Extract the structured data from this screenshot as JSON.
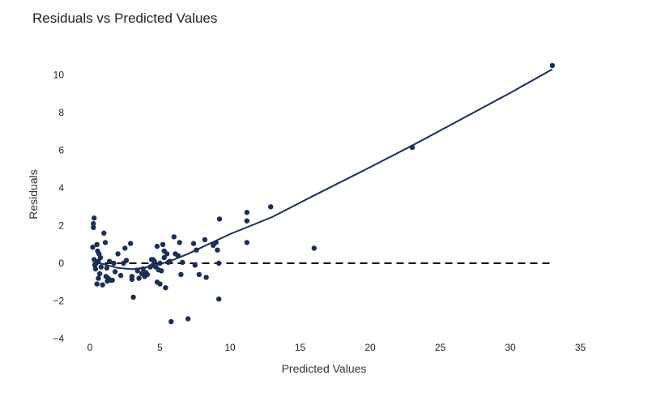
{
  "chart_data": {
    "type": "scatter",
    "title": "Residuals vs Predicted Values",
    "xlabel": "Predicted Values",
    "ylabel": "Residuals",
    "xlim": [
      -1,
      35
    ],
    "ylim": [
      -4,
      11
    ],
    "xticks": [
      0,
      5,
      10,
      15,
      20,
      25,
      30,
      35
    ],
    "yticks": [
      -4,
      -2,
      0,
      2,
      4,
      6,
      8,
      10
    ],
    "ytick_labels": [
      "−4",
      "−2",
      "0",
      "2",
      "4",
      "6",
      "8",
      "10"
    ],
    "grid": false,
    "point_color": "#1b2f56",
    "line_color": "#1b2f56",
    "zero_line": {
      "y": 0,
      "x_range": [
        0.2,
        33
      ],
      "style": "dashed",
      "color": "#000000"
    },
    "points": [
      {
        "x": 0.2,
        "y": 0.85
      },
      {
        "x": 0.25,
        "y": 1.9
      },
      {
        "x": 0.25,
        "y": 2.1
      },
      {
        "x": 0.3,
        "y": 2.4
      },
      {
        "x": 0.3,
        "y": 0.2
      },
      {
        "x": 0.35,
        "y": -0.1
      },
      {
        "x": 0.4,
        "y": -0.3
      },
      {
        "x": 0.45,
        "y": 0.0
      },
      {
        "x": 0.5,
        "y": 1.0
      },
      {
        "x": 0.5,
        "y": -1.1
      },
      {
        "x": 0.55,
        "y": 0.65
      },
      {
        "x": 0.6,
        "y": -0.8
      },
      {
        "x": 0.6,
        "y": 0.1
      },
      {
        "x": 0.65,
        "y": 0.5
      },
      {
        "x": 0.7,
        "y": -0.55
      },
      {
        "x": 0.75,
        "y": 0.3
      },
      {
        "x": 0.8,
        "y": -0.2
      },
      {
        "x": 0.9,
        "y": -1.15
      },
      {
        "x": 1.0,
        "y": 1.6
      },
      {
        "x": 1.1,
        "y": 1.1
      },
      {
        "x": 1.15,
        "y": -0.7
      },
      {
        "x": 1.2,
        "y": -0.25
      },
      {
        "x": 1.25,
        "y": -0.95
      },
      {
        "x": 1.3,
        "y": -0.8
      },
      {
        "x": 1.4,
        "y": 0.1
      },
      {
        "x": 1.5,
        "y": -0.9
      },
      {
        "x": 1.6,
        "y": -0.9
      },
      {
        "x": 1.7,
        "y": 0.0
      },
      {
        "x": 1.8,
        "y": -0.45
      },
      {
        "x": 2.0,
        "y": 0.5
      },
      {
        "x": 2.2,
        "y": -0.65
      },
      {
        "x": 2.4,
        "y": 0.0
      },
      {
        "x": 2.5,
        "y": 0.8
      },
      {
        "x": 2.6,
        "y": 0.15
      },
      {
        "x": 2.9,
        "y": 1.05
      },
      {
        "x": 3.0,
        "y": -0.7
      },
      {
        "x": 3.0,
        "y": -0.85
      },
      {
        "x": 3.1,
        "y": -1.8
      },
      {
        "x": 3.4,
        "y": -0.4
      },
      {
        "x": 3.5,
        "y": -0.8
      },
      {
        "x": 3.7,
        "y": -0.55
      },
      {
        "x": 3.8,
        "y": -0.3
      },
      {
        "x": 3.9,
        "y": -0.7
      },
      {
        "x": 4.0,
        "y": -0.5
      },
      {
        "x": 4.1,
        "y": -0.6
      },
      {
        "x": 4.3,
        "y": -0.2
      },
      {
        "x": 4.4,
        "y": 0.2
      },
      {
        "x": 4.5,
        "y": 0.2
      },
      {
        "x": 4.5,
        "y": -0.1
      },
      {
        "x": 4.6,
        "y": 0.1
      },
      {
        "x": 4.7,
        "y": -0.2
      },
      {
        "x": 4.8,
        "y": 0.9
      },
      {
        "x": 4.8,
        "y": -1.0
      },
      {
        "x": 4.9,
        "y": -0.35
      },
      {
        "x": 5.0,
        "y": -1.1
      },
      {
        "x": 5.0,
        "y": 0.0
      },
      {
        "x": 5.1,
        "y": -0.4
      },
      {
        "x": 5.2,
        "y": 1.0
      },
      {
        "x": 5.3,
        "y": 0.3
      },
      {
        "x": 5.3,
        "y": 0.65
      },
      {
        "x": 5.4,
        "y": -1.3
      },
      {
        "x": 5.5,
        "y": 0.5
      },
      {
        "x": 5.6,
        "y": 0.05
      },
      {
        "x": 5.7,
        "y": 0.1
      },
      {
        "x": 5.8,
        "y": -3.1
      },
      {
        "x": 6.0,
        "y": 1.4
      },
      {
        "x": 6.1,
        "y": 0.5
      },
      {
        "x": 6.3,
        "y": 0.4
      },
      {
        "x": 6.4,
        "y": 1.1
      },
      {
        "x": 6.5,
        "y": -0.6
      },
      {
        "x": 6.6,
        "y": 0.05
      },
      {
        "x": 7.0,
        "y": -2.95
      },
      {
        "x": 7.4,
        "y": 1.05
      },
      {
        "x": 7.5,
        "y": -0.1
      },
      {
        "x": 7.6,
        "y": 0.7
      },
      {
        "x": 7.8,
        "y": -0.6
      },
      {
        "x": 8.2,
        "y": 1.25
      },
      {
        "x": 8.3,
        "y": -0.75
      },
      {
        "x": 8.8,
        "y": 0.95
      },
      {
        "x": 9.0,
        "y": 1.1
      },
      {
        "x": 9.1,
        "y": 0.7
      },
      {
        "x": 9.2,
        "y": 0.0
      },
      {
        "x": 9.2,
        "y": -1.9
      },
      {
        "x": 9.25,
        "y": 2.35
      },
      {
        "x": 11.2,
        "y": 2.25
      },
      {
        "x": 11.2,
        "y": 2.7
      },
      {
        "x": 11.2,
        "y": 1.1
      },
      {
        "x": 12.9,
        "y": 3.0
      },
      {
        "x": 16.0,
        "y": 0.8
      },
      {
        "x": 23.0,
        "y": 6.15
      },
      {
        "x": 33.0,
        "y": 10.5
      }
    ],
    "trend_line": [
      {
        "x": 0.3,
        "y": 0.05
      },
      {
        "x": 1.0,
        "y": -0.05
      },
      {
        "x": 2.0,
        "y": -0.25
      },
      {
        "x": 3.0,
        "y": -0.32
      },
      {
        "x": 4.0,
        "y": -0.22
      },
      {
        "x": 5.0,
        "y": -0.05
      },
      {
        "x": 6.0,
        "y": 0.2
      },
      {
        "x": 7.0,
        "y": 0.5
      },
      {
        "x": 8.0,
        "y": 0.85
      },
      {
        "x": 9.0,
        "y": 1.2
      },
      {
        "x": 10.0,
        "y": 1.55
      },
      {
        "x": 11.0,
        "y": 1.85
      },
      {
        "x": 13.0,
        "y": 2.45
      },
      {
        "x": 16.0,
        "y": 3.6
      },
      {
        "x": 20.0,
        "y": 5.1
      },
      {
        "x": 23.0,
        "y": 6.25
      },
      {
        "x": 27.0,
        "y": 7.85
      },
      {
        "x": 30.0,
        "y": 9.05
      },
      {
        "x": 33.0,
        "y": 10.3
      }
    ]
  }
}
